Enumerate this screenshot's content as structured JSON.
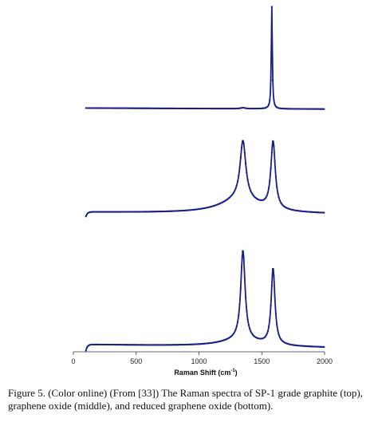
{
  "chart_data": {
    "type": "line",
    "color": "#1a1f8a",
    "xlabel_main": "Raman Shift (cm",
    "xlabel_sup": "-1",
    "xlabel_end": ")",
    "xlim": [
      0,
      2000
    ],
    "x_ticks": [
      0,
      500,
      1000,
      1500,
      2000
    ],
    "panels": [
      {
        "position": "top",
        "baseline_start": 0.02,
        "baseline_end": 0.01,
        "edge_dip": 0.0,
        "tail_rise": 0.0,
        "peaks": [
          {
            "center": 1580,
            "height": 1.0,
            "width": 10
          },
          {
            "center": 1350,
            "height": 0.01,
            "width": 40
          }
        ]
      },
      {
        "position": "middle",
        "baseline_start": 0.07,
        "baseline_end": 0.05,
        "edge_dip": 0.05,
        "tail_rise": 0.45,
        "peaks": [
          {
            "center": 1350,
            "height": 0.64,
            "width": 55
          },
          {
            "center": 1590,
            "height": 0.74,
            "width": 42
          }
        ]
      },
      {
        "position": "bottom",
        "baseline_start": 0.07,
        "baseline_end": 0.04,
        "edge_dip": 0.06,
        "tail_rise": 0.18,
        "peaks": [
          {
            "center": 1350,
            "height": 0.87,
            "width": 42
          },
          {
            "center": 1590,
            "height": 0.74,
            "width": 36
          }
        ]
      }
    ]
  },
  "caption": "Figure 5. (Color online) (From [33]) The Raman spectra of SP-1 grade graphite (top), graphene oxide (middle), and reduced graphene oxide (bottom)."
}
